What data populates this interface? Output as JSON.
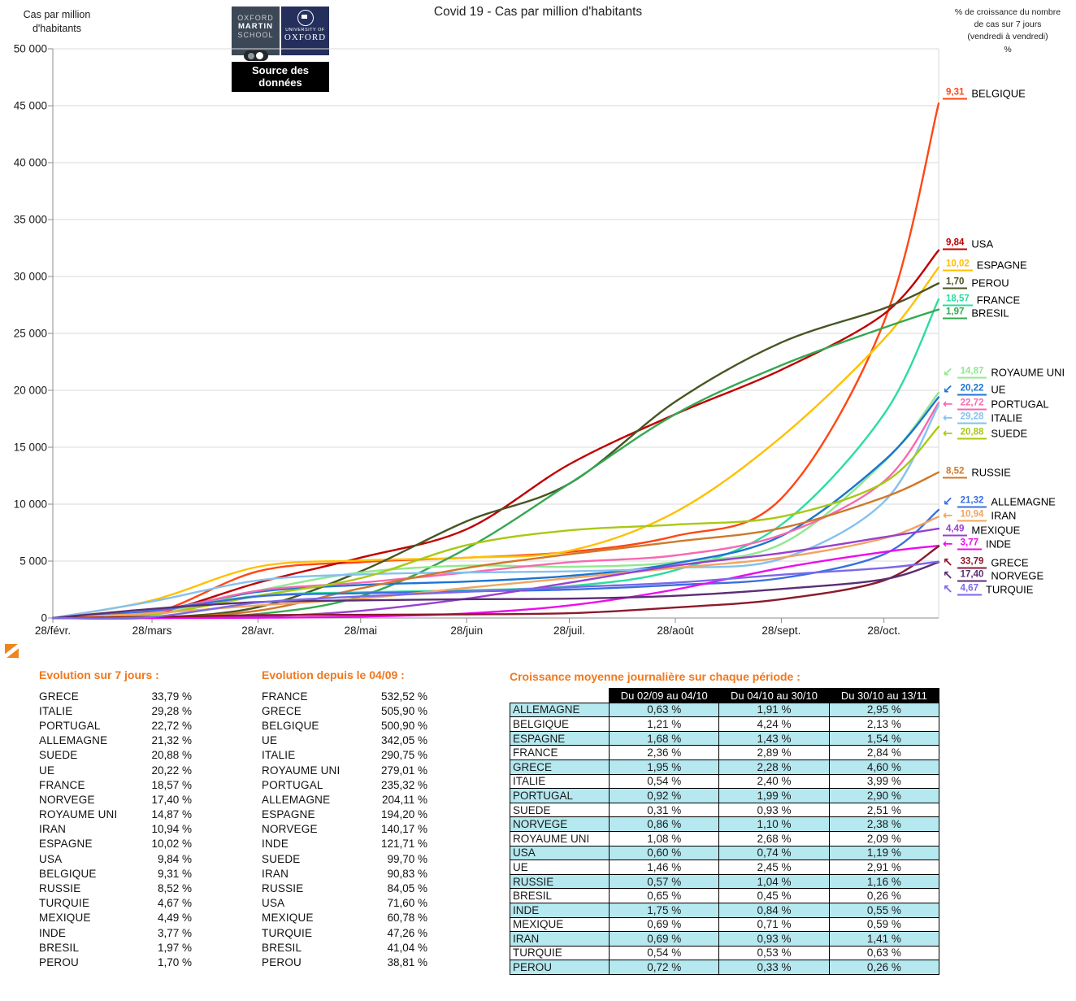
{
  "header": {
    "left_axis_title": "Cas par million\nd'habitants",
    "title": "Covid 19 - Cas par million d'habitants",
    "right_axis_note": "% de croissance du nombre\nde cas sur 7 jours\n(vendredi à vendredi)\n%"
  },
  "logo": {
    "school_line1": "OXFORD",
    "school_line2": "MARTIN",
    "school_line3": "SCHOOL",
    "university_small": "UNIVERSITY OF",
    "university_name": "OXFORD",
    "source_label": "Source des données"
  },
  "chart_data": {
    "type": "line",
    "title": "Covid 19 - Cas par million d'habitants",
    "ylabel": "Cas par million d'habitants",
    "ylim": [
      0,
      50000
    ],
    "y_tick_step": 5000,
    "y_tick_labels": [
      "0",
      "5 000",
      "10 000",
      "15 000",
      "20 000",
      "25 000",
      "30 000",
      "35 000",
      "40 000",
      "45 000",
      "50 000"
    ],
    "x_tick_labels": [
      "28/févr.",
      "28/mars",
      "28/avr.",
      "28/mai",
      "28/juin",
      "28/juil.",
      "28/août",
      "28/sept.",
      "28/oct."
    ],
    "x_tick_days": [
      0,
      29,
      60,
      90,
      121,
      151,
      182,
      213,
      243
    ],
    "x_total_days": 259,
    "x_dates": [
      "28/02",
      "28/03",
      "28/04",
      "28/05",
      "28/06",
      "28/07",
      "28/08",
      "28/09",
      "28/10",
      "13/11"
    ],
    "x_days": [
      0,
      29,
      60,
      90,
      121,
      151,
      182,
      213,
      243,
      259
    ],
    "grid": true,
    "legend_position": "right",
    "series": [
      {
        "name": "BELGIQUE",
        "color": "#ff4714",
        "growth7": "9,31",
        "arrow": "",
        "label_y": 115,
        "values": [
          0,
          400,
          4100,
          4900,
          5300,
          5800,
          7200,
          10500,
          26000,
          45200
        ]
      },
      {
        "name": "USA",
        "color": "#c00000",
        "growth7": "9,84",
        "arrow": "",
        "label_y": 300,
        "values": [
          0,
          370,
          3100,
          5300,
          7800,
          13500,
          17900,
          21800,
          26700,
          32300
        ]
      },
      {
        "name": "ESPAGNE",
        "color": "#ffc000",
        "growth7": "10,02",
        "arrow": "",
        "label_y": 326,
        "values": [
          0,
          1550,
          4500,
          5050,
          5300,
          5900,
          9300,
          15900,
          24500,
          30800
        ]
      },
      {
        "name": "PEROU",
        "color": "#475623",
        "growth7": "1,70",
        "arrow": "",
        "label_y": 348,
        "values": [
          0,
          20,
          950,
          4100,
          8500,
          11800,
          19000,
          24200,
          27200,
          29400
        ]
      },
      {
        "name": "FRANCE",
        "color": "#2bdda0",
        "growth7": "18,57",
        "arrow": "",
        "label_y": 369,
        "values": [
          0,
          560,
          1950,
          2250,
          2440,
          2800,
          4200,
          8200,
          17900,
          28000
        ]
      },
      {
        "name": "BRESIL",
        "color": "#34a853",
        "growth7": "1,97",
        "arrow": "",
        "label_y": 385,
        "values": [
          0,
          20,
          350,
          1900,
          6100,
          11800,
          17900,
          22200,
          25500,
          27100
        ]
      },
      {
        "name": "ROYAUME UNI",
        "color": "#90e890",
        "growth7": "14,87",
        "arrow": "↙",
        "label_y": 458,
        "values": [
          0,
          260,
          2400,
          4000,
          4600,
          4500,
          4900,
          6500,
          13700,
          19800
        ]
      },
      {
        "name": "UE",
        "color": "#1b75d1",
        "growth7": "20,22",
        "arrow": "↙",
        "label_y": 479,
        "values": [
          0,
          600,
          2300,
          2900,
          3200,
          3700,
          4800,
          7200,
          13800,
          19400
        ]
      },
      {
        "name": "PORTUGAL",
        "color": "#f768b0",
        "growth7": "22,72",
        "arrow": "←",
        "label_y": 497,
        "values": [
          0,
          510,
          2400,
          3100,
          4000,
          4900,
          5500,
          7300,
          12000,
          18900
        ]
      },
      {
        "name": "ITALIE",
        "color": "#85c1f0",
        "growth7": "29,28",
        "arrow": "←",
        "label_y": 514,
        "values": [
          0,
          1450,
          3300,
          3830,
          4000,
          4100,
          4400,
          5200,
          10200,
          18700
        ]
      },
      {
        "name": "SUEDE",
        "color": "#a8c913",
        "growth7": "20,88",
        "arrow": "←",
        "label_y": 533,
        "values": [
          0,
          300,
          1950,
          3500,
          6400,
          7700,
          8200,
          8900,
          11900,
          16800
        ]
      },
      {
        "name": "RUSSIE",
        "color": "#d0782b",
        "growth7": "8,52",
        "arrow": "",
        "label_y": 581,
        "values": [
          0,
          10,
          640,
          2600,
          4400,
          5600,
          6700,
          7900,
          10600,
          12800
        ]
      },
      {
        "name": "ALLEMAGNE",
        "color": "#3a6fe0",
        "growth7": "21,32",
        "arrow": "↙",
        "label_y": 617,
        "values": [
          0,
          630,
          1900,
          2170,
          2340,
          2500,
          2900,
          3500,
          5600,
          9500
        ]
      },
      {
        "name": "IRAN",
        "color": "#f2a45f",
        "growth7": "10,94",
        "arrow": "←",
        "label_y": 634,
        "values": [
          0,
          420,
          1100,
          1700,
          2650,
          3500,
          4400,
          5300,
          7000,
          8900
        ]
      },
      {
        "name": "MEXIQUE",
        "color": "#9940ce",
        "growth7": "4,49",
        "arrow": "",
        "label_y": 652,
        "values": [
          0,
          6,
          120,
          630,
          1700,
          3100,
          4600,
          5700,
          7100,
          7850
        ]
      },
      {
        "name": "INDE",
        "color": "#ee0aee",
        "growth7": "3,77",
        "arrow": "←",
        "label_y": 669,
        "values": [
          0,
          1,
          24,
          120,
          400,
          1100,
          2500,
          4400,
          5800,
          6350
        ]
      },
      {
        "name": "GRECE",
        "color": "#8b1a2b",
        "growth7": "33,79",
        "arrow": "↖",
        "label_y": 692,
        "values": [
          0,
          90,
          250,
          280,
          320,
          420,
          920,
          1650,
          3300,
          6300
        ]
      },
      {
        "name": "NORVEGE",
        "color": "#5b2d74",
        "growth7": "17,40",
        "arrow": "↖",
        "label_y": 708,
        "values": [
          0,
          800,
          1400,
          1550,
          1650,
          1700,
          1950,
          2550,
          3400,
          4900
        ]
      },
      {
        "name": "TURQUIE",
        "color": "#7a68e8",
        "growth7": "4,67",
        "arrow": "↖",
        "label_y": 725,
        "values": [
          0,
          90,
          1350,
          1900,
          2300,
          2700,
          3100,
          3800,
          4400,
          4950
        ]
      }
    ]
  },
  "tables": {
    "evolution_7j": {
      "title": "Evolution sur 7 jours :",
      "rows": [
        [
          "GRECE",
          "33,79 %"
        ],
        [
          "ITALIE",
          "29,28 %"
        ],
        [
          "PORTUGAL",
          "22,72 %"
        ],
        [
          "ALLEMAGNE",
          "21,32 %"
        ],
        [
          "SUEDE",
          "20,88 %"
        ],
        [
          "UE",
          "20,22 %"
        ],
        [
          "FRANCE",
          "18,57 %"
        ],
        [
          "NORVEGE",
          "17,40 %"
        ],
        [
          "ROYAUME UNI",
          "14,87 %"
        ],
        [
          "IRAN",
          "10,94 %"
        ],
        [
          "ESPAGNE",
          "10,02 %"
        ],
        [
          "USA",
          "9,84 %"
        ],
        [
          "BELGIQUE",
          "9,31 %"
        ],
        [
          "RUSSIE",
          "8,52 %"
        ],
        [
          "TURQUIE",
          "4,67 %"
        ],
        [
          "MEXIQUE",
          "4,49 %"
        ],
        [
          "INDE",
          "3,77 %"
        ],
        [
          "BRESIL",
          "1,97 %"
        ],
        [
          "PEROU",
          "1,70 %"
        ]
      ]
    },
    "evolution_0409": {
      "title": "Evolution depuis le 04/09 :",
      "rows": [
        [
          "FRANCE",
          "532,52 %"
        ],
        [
          "GRECE",
          "505,90 %"
        ],
        [
          "BELGIQUE",
          "500,90 %"
        ],
        [
          "UE",
          "342,05 %"
        ],
        [
          "ITALIE",
          "290,75 %"
        ],
        [
          "ROYAUME UNI",
          "279,01 %"
        ],
        [
          "PORTUGAL",
          "235,32 %"
        ],
        [
          "ALLEMAGNE",
          "204,11 %"
        ],
        [
          "ESPAGNE",
          "194,20 %"
        ],
        [
          "NORVEGE",
          "140,17 %"
        ],
        [
          "INDE",
          "121,71 %"
        ],
        [
          "SUEDE",
          "99,70 %"
        ],
        [
          "IRAN",
          "90,83 %"
        ],
        [
          "RUSSIE",
          "84,05 %"
        ],
        [
          "USA",
          "71,60 %"
        ],
        [
          "MEXIQUE",
          "60,78 %"
        ],
        [
          "TURQUIE",
          "47,26 %"
        ],
        [
          "BRESIL",
          "41,04 %"
        ],
        [
          "PEROU",
          "38,81 %"
        ]
      ]
    },
    "croissance": {
      "title": "Croissance moyenne journalière sur chaque période :",
      "columns": [
        "",
        "Du 02/09 au 04/10",
        "Du 04/10 au 30/10",
        "Du 30/10 au 13/11"
      ],
      "rows": [
        [
          "ALLEMAGNE",
          "0,63 %",
          "1,91 %",
          "2,95 %"
        ],
        [
          "BELGIQUE",
          "1,21 %",
          "4,24 %",
          "2,13 %"
        ],
        [
          "ESPAGNE",
          "1,68 %",
          "1,43 %",
          "1,54 %"
        ],
        [
          "FRANCE",
          "2,36 %",
          "2,89 %",
          "2,84 %"
        ],
        [
          "GRECE",
          "1,95 %",
          "2,28 %",
          "4,60 %"
        ],
        [
          "ITALIE",
          "0,54 %",
          "2,40 %",
          "3,99 %"
        ],
        [
          "PORTUGAL",
          "0,92 %",
          "1,99 %",
          "2,90 %"
        ],
        [
          "SUEDE",
          "0,31 %",
          "0,93 %",
          "2,51 %"
        ],
        [
          "NORVEGE",
          "0,86 %",
          "1,10 %",
          "2,38 %"
        ],
        [
          "ROYAUME UNI",
          "1,08 %",
          "2,68 %",
          "2,09 %"
        ],
        [
          "USA",
          "0,60 %",
          "0,74 %",
          "1,19 %"
        ],
        [
          "UE",
          "1,46 %",
          "2,45 %",
          "2,91 %"
        ],
        [
          "RUSSIE",
          "0,57 %",
          "1,04 %",
          "1,16 %"
        ],
        [
          "BRESIL",
          "0,65 %",
          "0,45 %",
          "0,26 %"
        ],
        [
          "INDE",
          "1,75 %",
          "0,84 %",
          "0,55 %"
        ],
        [
          "MEXIQUE",
          "0,69 %",
          "0,71 %",
          "0,59 %"
        ],
        [
          "IRAN",
          "0,69 %",
          "0,93 %",
          "1,41 %"
        ],
        [
          "TURQUIE",
          "0,54 %",
          "0,53 %",
          "0,63 %"
        ],
        [
          "PEROU",
          "0,72 %",
          "0,33 %",
          "0,26 %"
        ]
      ]
    }
  },
  "colors": {
    "heading_orange": "#f0781e",
    "table_row_cyan": "#b5e8ef",
    "gridline": "#d9d9d9",
    "axis": "#8c8c8c"
  }
}
